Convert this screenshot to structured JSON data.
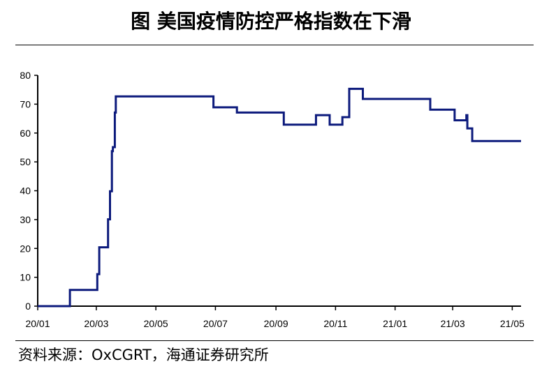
{
  "title": "图  美国疫情防控严格指数在下滑",
  "source": "资料来源：OxCGRT，海通证券研究所",
  "colors": {
    "line": "#0c1a7c",
    "axis": "#000000"
  },
  "chart_data": {
    "type": "line",
    "title": "图  美国疫情防控严格指数在下滑",
    "xlabel": "",
    "ylabel": "",
    "ylim": [
      0,
      80
    ],
    "yticks": [
      0,
      10,
      20,
      30,
      40,
      50,
      60,
      70,
      80
    ],
    "xlim": [
      "2020-01-01",
      "2021-05-10"
    ],
    "xtick_labels": [
      "20/01",
      "20/03",
      "20/05",
      "20/07",
      "20/09",
      "20/11",
      "21/01",
      "21/03",
      "21/05"
    ],
    "xtick_dates": [
      "2020-01-01",
      "2020-03-01",
      "2020-05-01",
      "2020-07-01",
      "2020-09-01",
      "2020-11-01",
      "2021-01-01",
      "2021-03-01",
      "2021-05-01"
    ],
    "grid": false,
    "legend": "none",
    "series": [
      {
        "step": true,
        "points": [
          [
            "2020-01-01",
            0.0
          ],
          [
            "2020-02-03",
            5.6
          ],
          [
            "2020-03-02",
            11.1
          ],
          [
            "2020-03-04",
            20.4
          ],
          [
            "2020-03-13",
            30.1
          ],
          [
            "2020-03-15",
            39.8
          ],
          [
            "2020-03-17",
            53.7
          ],
          [
            "2020-03-18",
            55.1
          ],
          [
            "2020-03-20",
            67.1
          ],
          [
            "2020-03-21",
            72.7
          ],
          [
            "2020-06-29",
            68.9
          ],
          [
            "2020-07-23",
            67.1
          ],
          [
            "2020-09-09",
            62.9
          ],
          [
            "2020-10-12",
            66.2
          ],
          [
            "2020-10-26",
            62.9
          ],
          [
            "2020-11-08",
            65.5
          ],
          [
            "2020-11-15",
            75.3
          ],
          [
            "2020-11-29",
            71.8
          ],
          [
            "2021-02-06",
            68.1
          ],
          [
            "2021-03-03",
            64.4
          ],
          [
            "2021-03-15",
            66.2
          ],
          [
            "2021-03-16",
            61.6
          ],
          [
            "2021-03-21",
            57.2
          ],
          [
            "2021-05-10",
            57.2
          ]
        ]
      }
    ]
  }
}
